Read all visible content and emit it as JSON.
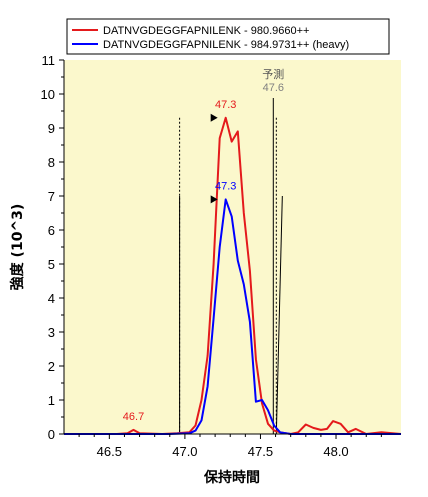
{
  "chart_data": {
    "type": "line",
    "xlabel": "保持時間",
    "ylabel": "強度 (10^3)",
    "xlim": [
      46.2,
      48.43
    ],
    "ylim": [
      0,
      11
    ],
    "x_ticks": [
      "46.5",
      "47.0",
      "47.5",
      "48.0"
    ],
    "x_tick_values": [
      46.5,
      47.0,
      47.5,
      48.0
    ],
    "y_ticks": [
      "0",
      "1",
      "2",
      "3",
      "4",
      "5",
      "6",
      "7",
      "8",
      "9",
      "10",
      "11"
    ],
    "plot_background": "#fbf8cc",
    "legend_placement": "top",
    "series": [
      {
        "name": "DATNVGDEGGFAPNILENK - 980.9660++",
        "color": "#e41a1c",
        "x": [
          46.2,
          46.55,
          46.62,
          46.66,
          46.7,
          46.85,
          46.95,
          47.03,
          47.07,
          47.11,
          47.15,
          47.19,
          47.23,
          47.27,
          47.31,
          47.35,
          47.39,
          47.43,
          47.47,
          47.51,
          47.55,
          47.59,
          47.63,
          47.7,
          47.75,
          47.8,
          47.85,
          47.9,
          47.94,
          47.98,
          48.03,
          48.08,
          48.13,
          48.2,
          48.3,
          48.43
        ],
        "y": [
          0.0,
          0.0,
          0.02,
          0.12,
          0.02,
          0.0,
          0.02,
          0.05,
          0.25,
          1.0,
          2.3,
          5.0,
          8.7,
          9.3,
          8.6,
          8.9,
          6.5,
          4.8,
          2.2,
          0.9,
          0.3,
          0.1,
          0.05,
          0.0,
          0.05,
          0.28,
          0.18,
          0.12,
          0.15,
          0.38,
          0.3,
          0.05,
          0.15,
          0.0,
          0.05,
          0.0
        ]
      },
      {
        "name": "DATNVGDEGGFAPNILENK - 984.9731++ (heavy)",
        "color": "#0000ff",
        "x": [
          46.2,
          46.9,
          47.03,
          47.07,
          47.11,
          47.15,
          47.19,
          47.23,
          47.27,
          47.31,
          47.35,
          47.39,
          47.43,
          47.47,
          47.51,
          47.55,
          47.59,
          47.63,
          47.7,
          48.43
        ],
        "y": [
          0.0,
          0.0,
          0.02,
          0.1,
          0.4,
          1.4,
          3.4,
          5.5,
          6.9,
          6.4,
          5.1,
          4.4,
          3.3,
          0.95,
          1.0,
          0.7,
          0.25,
          0.05,
          0.0,
          0.0
        ]
      }
    ],
    "annotations": [
      {
        "label": "46.7",
        "x": 46.66,
        "y": 0.12,
        "color": "#e41a1c"
      },
      {
        "label": "47.3",
        "x": 47.27,
        "y": 9.3,
        "color": "#e41a1c"
      },
      {
        "label": "47.3",
        "x": 47.27,
        "y": 6.9,
        "color": "#0000ff"
      }
    ],
    "peak_boundaries": [
      46.965,
      47.605
    ],
    "predicted": {
      "label": "予測",
      "value_label": "47.6",
      "x": 47.585
    }
  }
}
